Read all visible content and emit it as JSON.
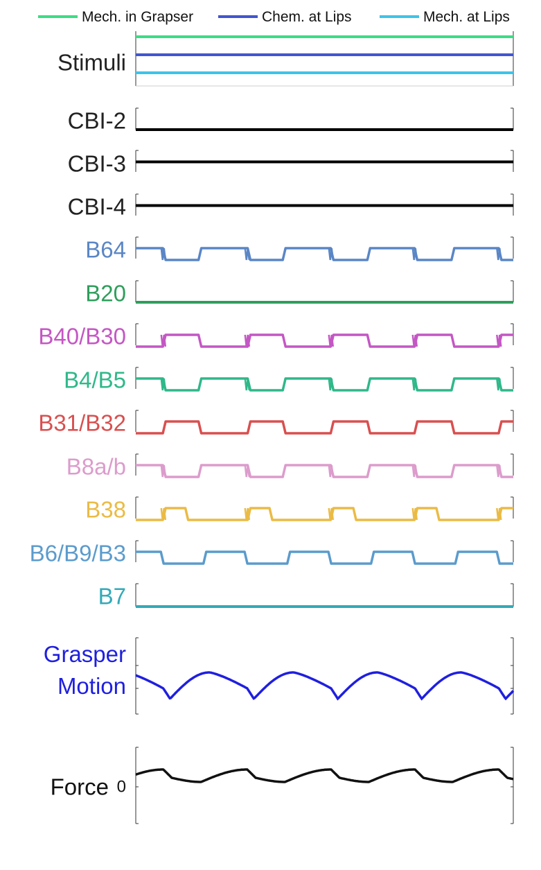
{
  "legend": [
    {
      "label": "Mech. in Grapser",
      "color": "#3ddc84"
    },
    {
      "label": "Chem. at Lips",
      "color": "#4056d0"
    },
    {
      "label": "Mech. at Lips",
      "color": "#3ec3ea"
    }
  ],
  "chart_data": {
    "type": "line",
    "x_range": [
      0,
      1
    ],
    "period": 0.2222,
    "panels": [
      {
        "label": "Stimuli",
        "color": "#222222",
        "kind": "stimuli",
        "series": [
          {
            "name": "Mech. in Grapser",
            "level": 1,
            "color": "#3ddc84"
          },
          {
            "name": "Chem. at Lips",
            "level": 1,
            "color": "#4056d0"
          },
          {
            "name": "Mech. at Lips",
            "level": 1,
            "color": "#3ec3ea"
          }
        ]
      },
      {
        "label": "CBI-2",
        "color": "#222222",
        "kind": "flat",
        "level": 0
      },
      {
        "label": "CBI-3",
        "color": "#222222",
        "kind": "flat",
        "level": 0.5
      },
      {
        "label": "CBI-4",
        "color": "#222222",
        "kind": "flat",
        "level": 0.5
      },
      {
        "label": "B64",
        "color": "#5a86c6",
        "kind": "square",
        "start_state": 1,
        "transitions": [
          0.0755,
          0.17,
          0.3,
          0.393,
          0.52,
          0.617,
          0.742,
          0.84,
          0.965
        ],
        "bursts": [
          0.073,
          0.295,
          0.517,
          0.739,
          0.962
        ]
      },
      {
        "label": "B20",
        "color": "#2e9e5b",
        "kind": "flat",
        "level": 0
      },
      {
        "label": "B40/B30",
        "color": "#c457c4",
        "kind": "square",
        "start_state": 0,
        "transitions": [
          0.0755,
          0.17,
          0.3,
          0.393,
          0.52,
          0.617,
          0.742,
          0.84,
          0.965
        ],
        "bursts": [
          0.073,
          0.295,
          0.517,
          0.739,
          0.962
        ]
      },
      {
        "label": "B4/B5",
        "color": "#2fb889",
        "kind": "square",
        "start_state": 1,
        "transitions": [
          0.0755,
          0.17,
          0.3,
          0.393,
          0.52,
          0.617,
          0.742,
          0.84,
          0.965
        ],
        "bursts": [
          0.073,
          0.295,
          0.517,
          0.739,
          0.962
        ]
      },
      {
        "label": "B31/B32",
        "color": "#d94f4f",
        "kind": "square",
        "start_state": 0,
        "transitions": [
          0.0755,
          0.17,
          0.3,
          0.393,
          0.52,
          0.617,
          0.742,
          0.84,
          0.965
        ],
        "bursts": []
      },
      {
        "label": "B8a/b",
        "color": "#dc9ccc",
        "kind": "square",
        "start_state": 1,
        "transitions": [
          0.0755,
          0.17,
          0.3,
          0.393,
          0.52,
          0.617,
          0.742,
          0.84,
          0.965
        ],
        "bursts": [
          0.073,
          0.295,
          0.517,
          0.739,
          0.962
        ]
      },
      {
        "label": "B38",
        "color": "#eabb45",
        "kind": "square",
        "start_state": 0,
        "transitions": [
          0.0755,
          0.135,
          0.3,
          0.358,
          0.52,
          0.58,
          0.742,
          0.8,
          0.965
        ],
        "bursts": [
          0.073,
          0.295,
          0.517,
          0.739,
          0.962
        ]
      },
      {
        "label": "B6/B9/B3",
        "color": "#5b9bcc",
        "kind": "square",
        "start_state": 1,
        "transitions": [
          0.07,
          0.183,
          0.292,
          0.405,
          0.514,
          0.627,
          0.736,
          0.85,
          0.96
        ],
        "bursts": []
      },
      {
        "label": "B7",
        "color": "#33a9b8",
        "kind": "flat",
        "level": 0
      },
      {
        "label": "Grasper Motion",
        "label_lines": [
          "Grasper",
          "Motion"
        ],
        "color": "#1f1fe0",
        "kind": "motion"
      },
      {
        "label": "Force",
        "color": "#111111",
        "kind": "force",
        "ytick": "0"
      }
    ]
  }
}
